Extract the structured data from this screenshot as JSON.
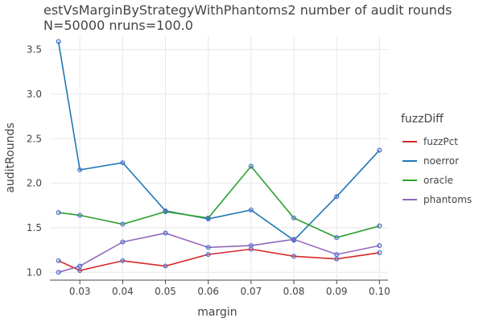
{
  "chart_data": {
    "type": "line",
    "title": "estVsMarginByStrategyWithPhantoms2 number of audit rounds",
    "subtitle": "N=50000 nruns=100.0",
    "xlabel": "margin",
    "ylabel": "auditRounds",
    "x": [
      0.025,
      0.03,
      0.04,
      0.05,
      0.06,
      0.07,
      0.08,
      0.09,
      0.1
    ],
    "x_ticks": [
      "0.03",
      "0.04",
      "0.05",
      "0.06",
      "0.07",
      "0.08",
      "0.09",
      "0.10"
    ],
    "y_ticks": [
      "1.0",
      "1.5",
      "2.0",
      "2.5",
      "3.0",
      "3.5"
    ],
    "xlim": [
      0.023,
      0.102
    ],
    "ylim": [
      0.93,
      3.65
    ],
    "grid": true,
    "legend_title": "fuzzDiff",
    "legend_position": "right",
    "series": [
      {
        "name": "fuzzPct",
        "color": "#d62728",
        "values": [
          1.13,
          1.02,
          1.13,
          1.07,
          1.2,
          1.26,
          1.18,
          1.15,
          1.22
        ]
      },
      {
        "name": "noerror",
        "color": "#1f77b4",
        "values": [
          3.59,
          2.15,
          2.23,
          1.69,
          1.6,
          1.7,
          1.36,
          1.85,
          2.37
        ]
      },
      {
        "name": "oracle",
        "color": "#2ca02c",
        "values": [
          1.67,
          1.64,
          1.54,
          1.68,
          1.61,
          2.19,
          1.61,
          1.39,
          1.52
        ]
      },
      {
        "name": "phantoms",
        "color": "#9467bd",
        "values": [
          1.0,
          1.07,
          1.34,
          1.44,
          1.28,
          1.3,
          1.37,
          1.2,
          1.3
        ]
      }
    ]
  }
}
